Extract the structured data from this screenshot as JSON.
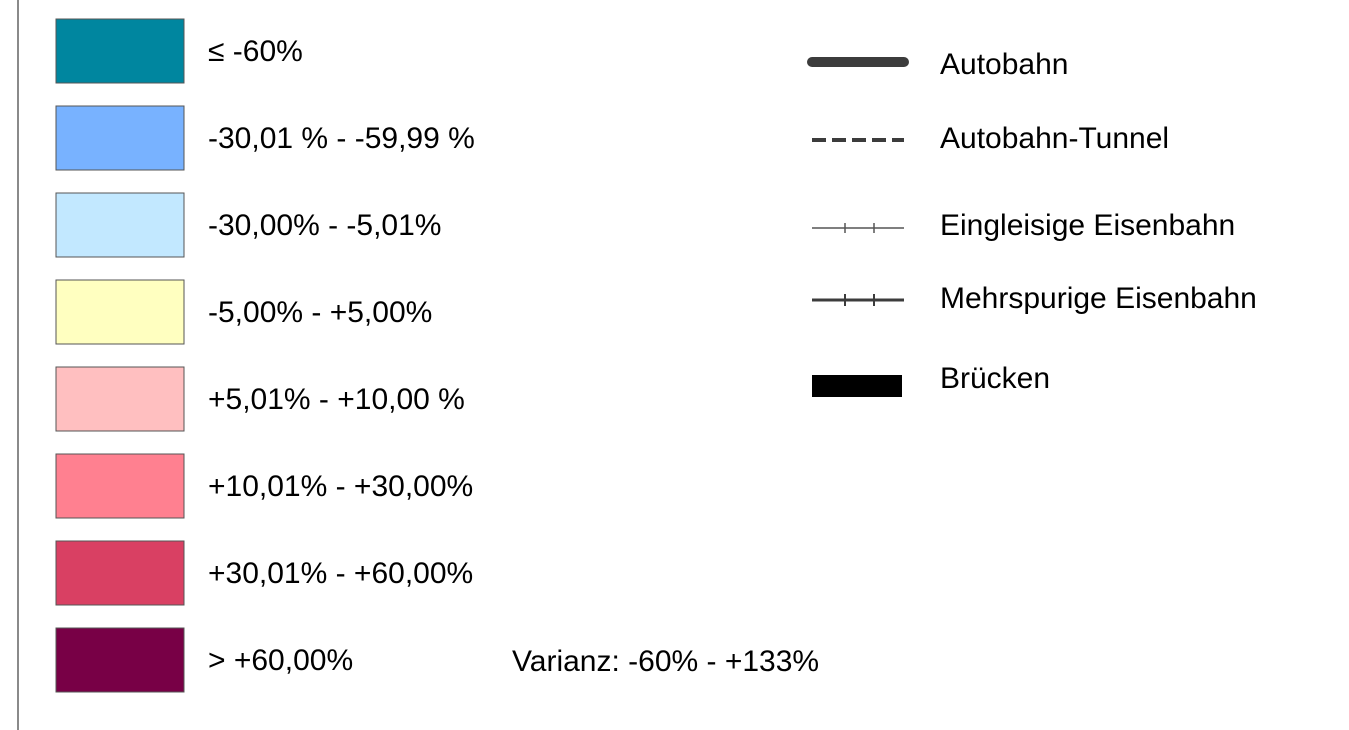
{
  "legend": {
    "classes": [
      {
        "label": "≤ -60%",
        "color": "#00869f"
      },
      {
        "label": "-30,01 % - -59,99 %",
        "color": "#78b2ff"
      },
      {
        "label": "-30,00% - -5,01%",
        "color": "#c2e8ff"
      },
      {
        "label": "-5,00% - +5,00%",
        "color": "#ffffc0"
      },
      {
        "label": "+5,01% - +10,00 %",
        "color": "#ffbfc0"
      },
      {
        "label": "+10,01% - +30,00%",
        "color": "#ff8090"
      },
      {
        "label": "+30,01% - +60,00%",
        "color": "#d94063"
      },
      {
        "label": "> +60,00%",
        "color": "#780046"
      }
    ],
    "symbols": [
      {
        "label": "Autobahn"
      },
      {
        "label": "Autobahn-Tunnel"
      },
      {
        "label": "Eingleisige Eisenbahn"
      },
      {
        "label": "Mehrspurige Eisenbahn"
      },
      {
        "label": "Brücken"
      }
    ],
    "note": "Varianz: -60% - +133%"
  }
}
